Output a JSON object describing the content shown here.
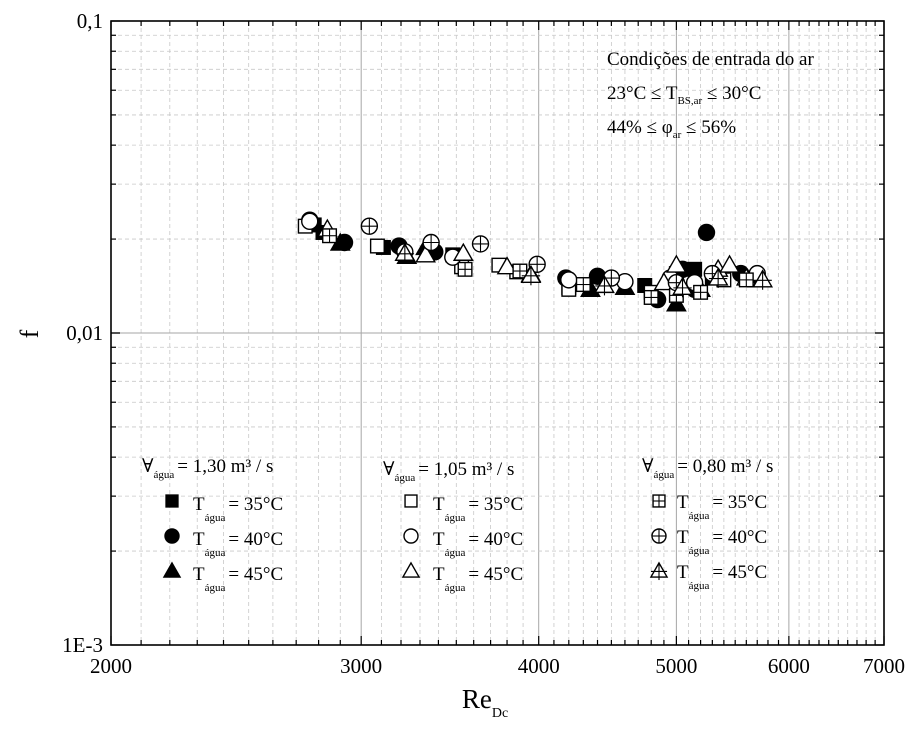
{
  "chart_data": {
    "type": "scatter",
    "title": "",
    "xlabel": "Re",
    "xlabel_sub": "Dc",
    "ylabel": "f",
    "x_scale": "log",
    "y_scale": "log",
    "xlim": [
      2000,
      7000
    ],
    "ylim": [
      0.001,
      0.1
    ],
    "x_ticks": [
      2000,
      3000,
      4000,
      5000,
      6000,
      7000
    ],
    "x_tick_labels": [
      "2000",
      "3000",
      "4000",
      "5000",
      "6000",
      "7000"
    ],
    "y_ticks": [
      0.001,
      0.01,
      0.1
    ],
    "y_tick_labels": [
      "1E-3",
      "0,01",
      "0,1"
    ],
    "grid": true,
    "annotation": {
      "line1": "Condições de entrada do ar",
      "line2_pre": "23°C ≤ T",
      "line2_sub": "BS,ar",
      "line2_post": " ≤ 30°C",
      "line3_pre": "44% ≤ φ",
      "line3_sub": "ar",
      "line3_post": " ≤ 56%"
    },
    "legend": {
      "placement": "bottom-left",
      "groups": [
        {
          "symbol": "∀",
          "sub": "água",
          "value": "= 1,30 m³ / s"
        },
        {
          "symbol": "∀",
          "sub": "água",
          "value": "= 1,05 m³ / s"
        },
        {
          "symbol": "∀",
          "sub": "água",
          "value": "= 0,80 m³ / s"
        }
      ],
      "row_label_pre": "T",
      "row_label_sub": "água",
      "row_values": [
        "= 35°C",
        "= 40°C",
        "= 45°C"
      ]
    },
    "series": [
      {
        "name": "1,30 m³/s, 35°C",
        "marker": "square-filled",
        "points": [
          [
            2780,
            0.0222
          ],
          [
            2820,
            0.021
          ],
          [
            3110,
            0.0188
          ],
          [
            3480,
            0.0178
          ],
          [
            4200,
            0.014
          ],
          [
            4750,
            0.0142
          ],
          [
            5000,
            0.0155
          ],
          [
            5150,
            0.016
          ],
          [
            5300,
            0.015
          ]
        ]
      },
      {
        "name": "1,30 m³/s, 40°C",
        "marker": "circle-filled",
        "points": [
          [
            2760,
            0.023
          ],
          [
            2920,
            0.0195
          ],
          [
            3190,
            0.019
          ],
          [
            3380,
            0.0182
          ],
          [
            4180,
            0.015
          ],
          [
            4400,
            0.0152
          ],
          [
            4850,
            0.0128
          ],
          [
            5050,
            0.016
          ],
          [
            5250,
            0.021
          ],
          [
            5150,
            0.0138
          ],
          [
            5550,
            0.0155
          ]
        ]
      },
      {
        "name": "1,30 m³/s, 45°C",
        "marker": "triangle-filled",
        "points": [
          [
            2900,
            0.0194
          ],
          [
            3230,
            0.0176
          ],
          [
            3330,
            0.0188
          ],
          [
            3950,
            0.0154
          ],
          [
            4350,
            0.0138
          ],
          [
            4600,
            0.014
          ],
          [
            5000,
            0.0124
          ],
          [
            5200,
            0.0138
          ],
          [
            5700,
            0.0148
          ]
        ]
      },
      {
        "name": "1,05 m³/s, 35°C",
        "marker": "square-open",
        "points": [
          [
            2740,
            0.022
          ],
          [
            3080,
            0.019
          ],
          [
            3530,
            0.0163
          ],
          [
            3750,
            0.0165
          ],
          [
            3860,
            0.0157
          ],
          [
            4200,
            0.0138
          ],
          [
            4800,
            0.0135
          ],
          [
            5000,
            0.0145
          ],
          [
            5400,
            0.0148
          ]
        ]
      },
      {
        "name": "1,05 m³/s, 40°C",
        "marker": "circle-open",
        "points": [
          [
            2760,
            0.0228
          ],
          [
            3220,
            0.0182
          ],
          [
            3480,
            0.0175
          ],
          [
            4200,
            0.0148
          ],
          [
            4600,
            0.0146
          ],
          [
            4950,
            0.015
          ],
          [
            5150,
            0.0145
          ],
          [
            5700,
            0.0155
          ]
        ]
      },
      {
        "name": "1,05 m³/s, 45°C",
        "marker": "triangle-open",
        "points": [
          [
            2840,
            0.0215
          ],
          [
            3330,
            0.0178
          ],
          [
            3540,
            0.018
          ],
          [
            3800,
            0.0163
          ],
          [
            4900,
            0.0145
          ],
          [
            5000,
            0.0165
          ],
          [
            5350,
            0.016
          ],
          [
            5450,
            0.0165
          ],
          [
            5600,
            0.015
          ]
        ]
      },
      {
        "name": "0,80 m³/s, 35°C",
        "marker": "square-plus",
        "points": [
          [
            2850,
            0.0205
          ],
          [
            3550,
            0.016
          ],
          [
            3880,
            0.0158
          ],
          [
            4300,
            0.0143
          ],
          [
            4800,
            0.013
          ],
          [
            5000,
            0.0132
          ],
          [
            5200,
            0.0135
          ],
          [
            5600,
            0.0148
          ]
        ]
      },
      {
        "name": "0,80 m³/s, 40°C",
        "marker": "circle-plus",
        "points": [
          [
            3040,
            0.022
          ],
          [
            3360,
            0.0195
          ],
          [
            3640,
            0.0193
          ],
          [
            3990,
            0.0166
          ],
          [
            4500,
            0.015
          ],
          [
            5000,
            0.0145
          ],
          [
            5300,
            0.0155
          ]
        ]
      },
      {
        "name": "0,80 m³/s, 45°C",
        "marker": "triangle-plus",
        "points": [
          [
            3220,
            0.018
          ],
          [
            3950,
            0.0153
          ],
          [
            4450,
            0.0142
          ],
          [
            5050,
            0.014
          ],
          [
            5350,
            0.015
          ],
          [
            5750,
            0.0148
          ]
        ]
      }
    ]
  }
}
